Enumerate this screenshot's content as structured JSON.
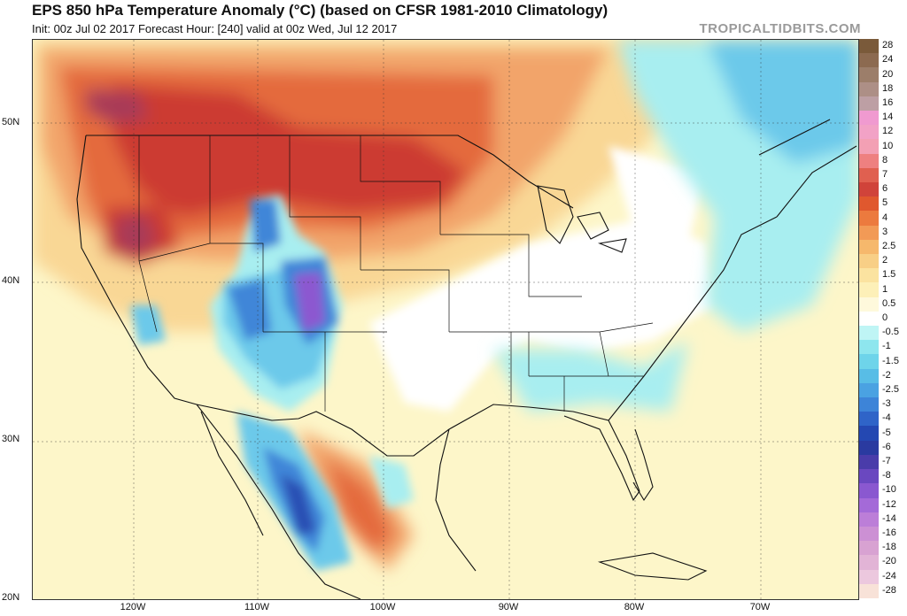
{
  "header": {
    "title": "EPS 850 hPa Temperature Anomaly (°C) (based on CFSR 1981-2010 Climatology)",
    "subtitle": "Init: 00z Jul 02 2017   Forecast Hour: [240]   valid at 00z Wed, Jul 12 2017",
    "brand": "TROPICALTIDBITS.COM"
  },
  "axes": {
    "lat_labels": [
      "50N",
      "40N",
      "30N",
      "20N"
    ],
    "lon_labels": [
      "120W",
      "110W",
      "100W",
      "90W",
      "80W",
      "70W"
    ]
  },
  "colorbar": {
    "labels": [
      "28",
      "24",
      "20",
      "18",
      "16",
      "14",
      "12",
      "10",
      "8",
      "7",
      "6",
      "5",
      "4",
      "3",
      "2.5",
      "2",
      "1.5",
      "1",
      "0.5",
      "0",
      "-0.5",
      "-1",
      "-1.5",
      "-2",
      "-2.5",
      "-3",
      "-4",
      "-5",
      "-6",
      "-7",
      "-8",
      "-10",
      "-12",
      "-14",
      "-16",
      "-18",
      "-20",
      "-24",
      "-28"
    ],
    "colors": [
      "#7a5a3a",
      "#8c6a50",
      "#9c7e6a",
      "#ad8f86",
      "#bd9fa4",
      "#f09ad0",
      "#f2a2c6",
      "#f3a0b4",
      "#ee8080",
      "#e06050",
      "#d0433a",
      "#e0582e",
      "#ec7a3e",
      "#f29a56",
      "#f6b86c",
      "#f8cf86",
      "#fbe3a0",
      "#fdf0b8",
      "#fef9dc",
      "#ffffff",
      "#bff5f5",
      "#8ee6ee",
      "#6ed4ea",
      "#58bde6",
      "#4aa2e2",
      "#3d84d8",
      "#2f64c8",
      "#2448b2",
      "#2a3aa0",
      "#4a3caa",
      "#6a48c0",
      "#8a58d0",
      "#a46ad8",
      "#bc7ed8",
      "#cc90d4",
      "#d8a2d2",
      "#e2b4d6",
      "#ecc8de",
      "#f8e2d8"
    ]
  },
  "map": {
    "colors": {
      "ocean_background": "#fdf6c9",
      "warm_light": "#f9d795",
      "warm_mid": "#f2a46a",
      "warm_strong": "#e46a3c",
      "warm_core": "#cc3a30",
      "warm_peak": "#a83a58",
      "neutral": "#ffffff",
      "cool_light": "#a8eef0",
      "cool_mid": "#6cc9ea",
      "cool_strong": "#3f86d8",
      "cool_core": "#2c4fb4",
      "cool_peak": "#8c58d0",
      "boundary": "#111111"
    }
  }
}
